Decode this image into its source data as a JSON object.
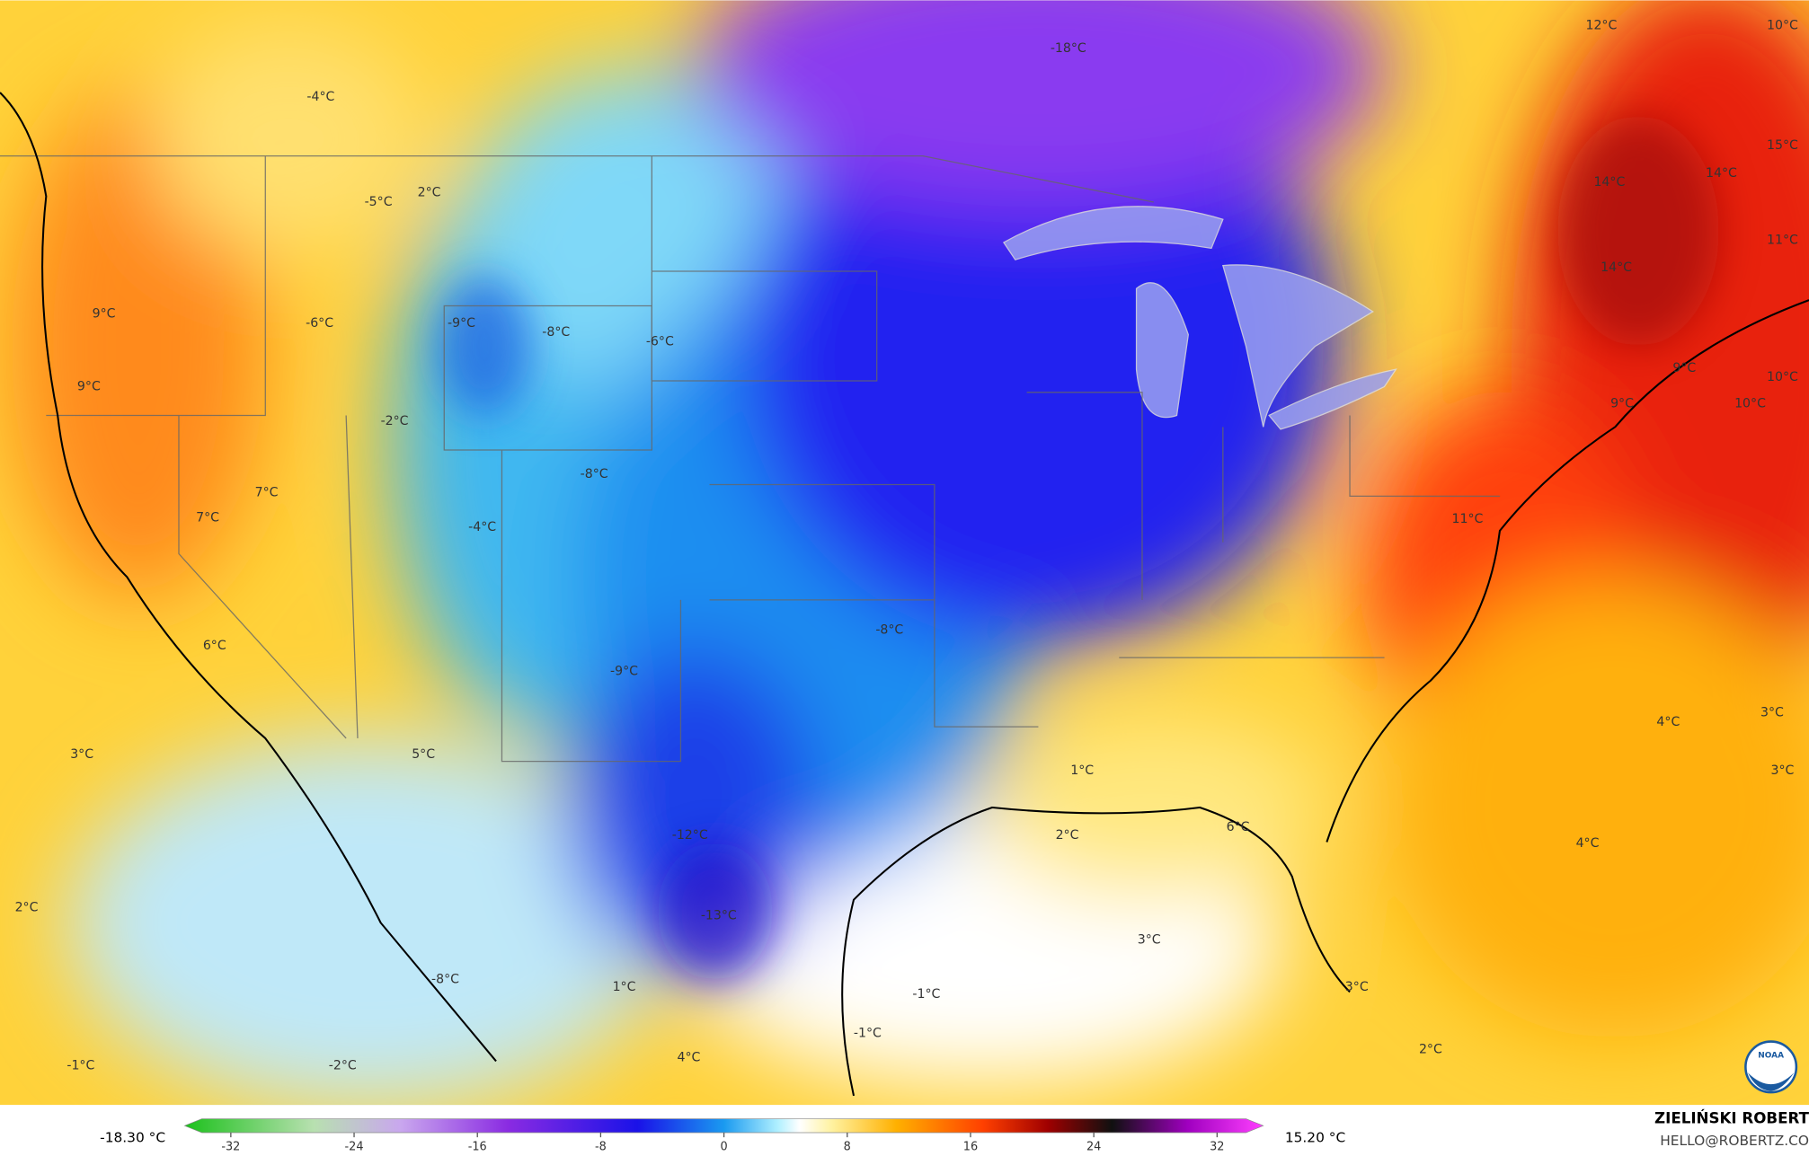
{
  "map": {
    "labels": [
      "-4°C",
      "2°C",
      "-5°C",
      "-18°C",
      "12°C",
      "10°C",
      "15°C",
      "14°C",
      "14°C",
      "11°C",
      "14°C",
      "9°C",
      "-6°C",
      "-9°C",
      "-8°C",
      "-6°C",
      "9°C",
      "-2°C",
      "9°C",
      "10°C",
      "9°C",
      "10°C",
      "-8°C",
      "7°C",
      "7°C",
      "-4°C",
      "11°C",
      "-8°C",
      "6°C",
      "-9°C",
      "4°C",
      "3°C",
      "3°C",
      "5°C",
      "1°C",
      "3°C",
      "2°C",
      "6°C",
      "-12°C",
      "4°C",
      "2°C",
      "-13°C",
      "3°C",
      "-8°C",
      "1°C",
      "3°C",
      "-1°C",
      "-1°C",
      "2°C",
      "4°C",
      "-1°C",
      "-2°C"
    ],
    "colorbar": {
      "min_label": "-18.30 °C",
      "max_label": "15.20 °C",
      "lim": [
        -35,
        35
      ],
      "ticks": [
        -32,
        -24,
        -16,
        -8,
        0,
        8,
        16,
        24,
        32
      ]
    },
    "credit": {
      "name": "ZIELIŃSKI ROBERT",
      "email": "HELLO@ROBERTZ.CO"
    },
    "logo": "NOAA"
  }
}
